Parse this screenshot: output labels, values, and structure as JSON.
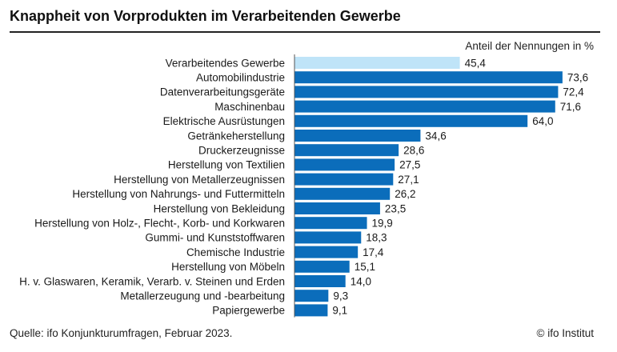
{
  "header": {
    "title": "Knappheit von Vorprodukten im Verarbeitenden Gewerbe",
    "unit_label": "Anteil der Nennungen in %"
  },
  "footer": {
    "source": "Quelle: ifo Konjunkturumfragen, Februar 2023.",
    "credit": "© ifo Institut"
  },
  "colors": {
    "highlight": "#bfe4f8",
    "bar": "#0b6dbb"
  },
  "chart_data": {
    "type": "bar",
    "orientation": "horizontal",
    "title": "Knappheit von Vorprodukten im Verarbeitenden Gewerbe",
    "xlabel": "Anteil der Nennungen in %",
    "ylabel": "",
    "xlim": [
      0,
      80
    ],
    "grid": false,
    "highlighted_category": "Verarbeitendes Gewerbe",
    "categories": [
      "Verarbeitendes Gewerbe",
      "Automobilindustrie",
      "Datenverarbeitungsgeräte",
      "Maschinenbau",
      "Elektrische Ausrüstungen",
      "Getränkeherstellung",
      "Druckerzeugnisse",
      "Herstellung von Textilien",
      "Herstellung von Metallerzeugnissen",
      "Herstellung von Nahrungs- und Futtermitteln",
      "Herstellung von Bekleidung",
      "Herstellung von Holz-, Flecht-, Korb- und Korkwaren",
      "Gummi- und Kunststoffwaren",
      "Chemische Industrie",
      "Herstellung von Möbeln",
      "H. v. Glaswaren, Keramik, Verarb. v. Steinen und Erden",
      "Metallerzeugung und -bearbeitung",
      "Papiergewerbe"
    ],
    "values": [
      45.4,
      73.6,
      72.4,
      71.6,
      64.0,
      34.6,
      28.6,
      27.5,
      27.1,
      26.2,
      23.5,
      19.9,
      18.3,
      17.4,
      15.1,
      14.0,
      9.3,
      9.1
    ],
    "value_labels": [
      "45,4",
      "73,6",
      "72,4",
      "71,6",
      "64,0",
      "34,6",
      "28,6",
      "27,5",
      "27,1",
      "26,2",
      "23,5",
      "19,9",
      "18,3",
      "17,4",
      "15,1",
      "14,0",
      "9,3",
      "9,1"
    ]
  }
}
